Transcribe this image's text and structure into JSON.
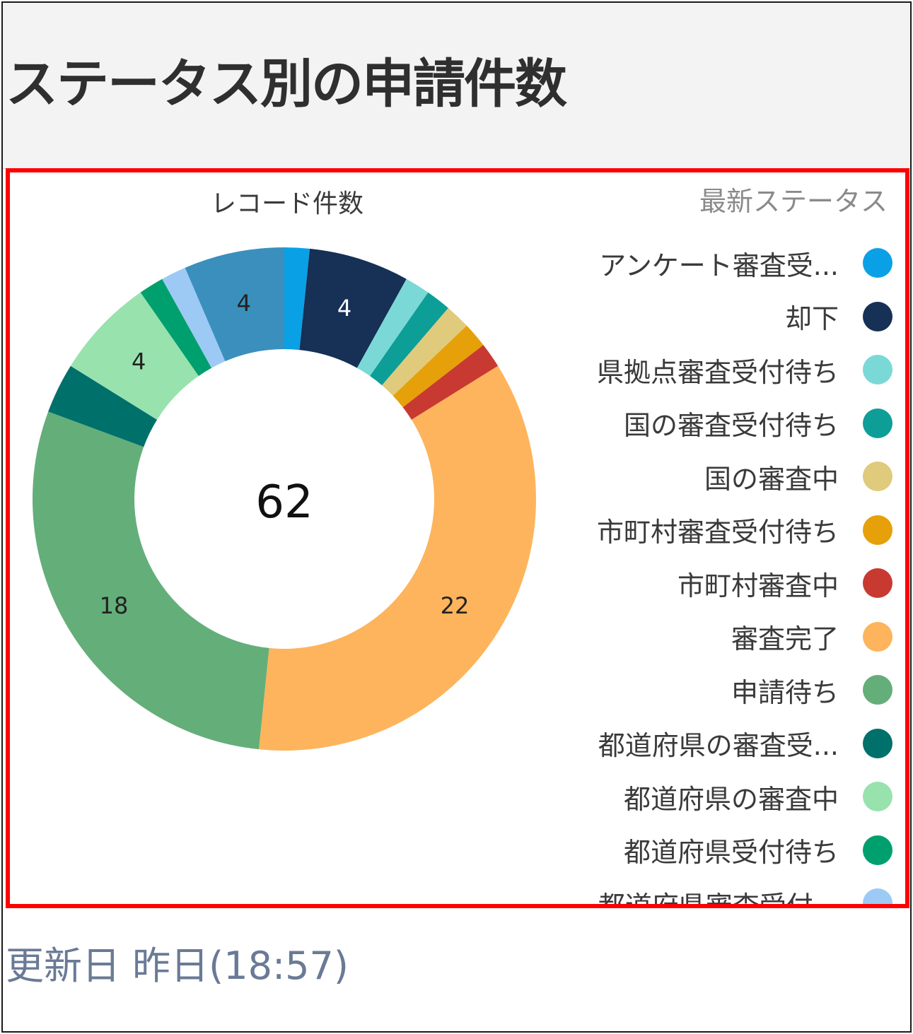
{
  "header": {
    "title": "ステータス別の申請件数"
  },
  "footer": {
    "updated": "更新日 昨日(18:57)"
  },
  "chart_data": {
    "type": "pie",
    "donut": true,
    "title": "レコード件数",
    "center_total": "62",
    "legend_title": "最新ステータス",
    "legend_position": "right",
    "slices": [
      {
        "name": "アンケート審査受...",
        "value": 1,
        "color": "#0aa0e6",
        "label": ""
      },
      {
        "name": "却下",
        "value": 4,
        "color": "#163056",
        "label": "4"
      },
      {
        "name": "県拠点審査受付待ち",
        "value": 1,
        "color": "#7ad9d6",
        "label": ""
      },
      {
        "name": "国の審査受付待ち",
        "value": 1,
        "color": "#0d9e98",
        "label": ""
      },
      {
        "name": "国の審査中",
        "value": 1,
        "color": "#e0ca7b",
        "label": ""
      },
      {
        "name": "市町村審査受付待ち",
        "value": 1,
        "color": "#e6a00a",
        "label": ""
      },
      {
        "name": "市町村審査中",
        "value": 1,
        "color": "#c83a31",
        "label": ""
      },
      {
        "name": "審査完了",
        "value": 22,
        "color": "#fdb45c",
        "label": "22"
      },
      {
        "name": "申請待ち",
        "value": 18,
        "color": "#64ae7a",
        "label": "18"
      },
      {
        "name": "都道府県の審査受...",
        "value": 2,
        "color": "#00706a",
        "label": ""
      },
      {
        "name": "都道府県の審査中",
        "value": 4,
        "color": "#98e2ae",
        "label": "4"
      },
      {
        "name": "都道府県受付待ち",
        "value": 1,
        "color": "#00a06e",
        "label": ""
      },
      {
        "name": "都道府県審査受付...",
        "value": 1,
        "color": "#9ccaf5",
        "label": ""
      },
      {
        "name": "",
        "value": 4,
        "color": "#3b8fbd",
        "label": "4"
      }
    ]
  }
}
